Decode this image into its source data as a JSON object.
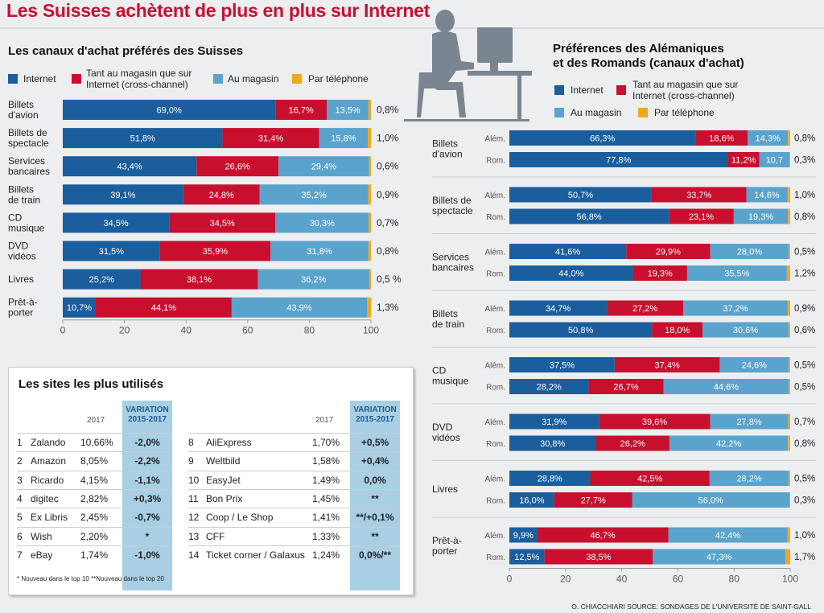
{
  "title": "Les Suisses achètent de plus en plus sur Internet",
  "colors": {
    "internet": "#1b5e9e",
    "cross": "#c8102e",
    "magasin": "#5aa3cc",
    "telephone": "#f2a81d",
    "title": "#c8102e"
  },
  "legend": {
    "internet": "Internet",
    "cross_line1": "Tant au magasin que sur",
    "cross_line2": "Internet (cross-channel)",
    "magasin": "Au magasin",
    "telephone": "Par téléphone"
  },
  "chart_data": [
    {
      "type": "bar",
      "orientation": "horizontal",
      "stacked": true,
      "title": "Les canaux d'achat préférés des Suisses",
      "series_names": [
        "Internet",
        "Tant au magasin que sur Internet (cross-channel)",
        "Au magasin",
        "Par téléphone"
      ],
      "xlim": [
        0,
        100
      ],
      "xticks": [
        "0",
        "20",
        "40",
        "60",
        "80",
        "100"
      ],
      "categories": [
        {
          "label": [
            "Billets",
            "d'avion"
          ],
          "values": [
            69.0,
            16.7,
            13.5,
            0.8
          ],
          "labels": [
            "69,0%",
            "16,7%",
            "13,5%",
            "0,8%"
          ]
        },
        {
          "label": [
            "Billets de",
            "spectacle"
          ],
          "values": [
            51.8,
            31.4,
            15.8,
            1.0
          ],
          "labels": [
            "51,8%",
            "31,4%",
            "15,8%",
            "1,0%"
          ]
        },
        {
          "label": [
            "Services",
            "bancaires"
          ],
          "values": [
            43.4,
            26.6,
            29.4,
            0.6
          ],
          "labels": [
            "43,4%",
            "26,6%",
            "29,4%",
            "0,6%"
          ]
        },
        {
          "label": [
            "Billets",
            "de train"
          ],
          "values": [
            39.1,
            24.8,
            35.2,
            0.9
          ],
          "labels": [
            "39,1%",
            "24,8%",
            "35,2%",
            "0,9%"
          ]
        },
        {
          "label": [
            "CD",
            "musique"
          ],
          "values": [
            34.5,
            34.5,
            30.3,
            0.7
          ],
          "labels": [
            "34,5%",
            "34,5%",
            "30,3%",
            "0,7%"
          ]
        },
        {
          "label": [
            "DVD",
            "vidéos"
          ],
          "values": [
            31.5,
            35.9,
            31.8,
            0.8
          ],
          "labels": [
            "31,5%",
            "35,9%",
            "31,8%",
            "0,8%"
          ]
        },
        {
          "label": [
            "Livres"
          ],
          "values": [
            25.2,
            38.1,
            36.2,
            0.5
          ],
          "labels": [
            "25,2%",
            "38,1%",
            "36,2%",
            "0,5 %"
          ]
        },
        {
          "label": [
            "Prêt-à-",
            "porter"
          ],
          "values": [
            10.7,
            44.1,
            43.9,
            1.3
          ],
          "labels": [
            "10,7%",
            "44,1%",
            "43,9%",
            "1,3%"
          ]
        }
      ]
    },
    {
      "type": "bar",
      "orientation": "horizontal",
      "stacked": true,
      "title": "Préférences des Alémaniques et des Romands (canaux d'achat)",
      "title_lines": [
        "Préférences des Alémaniques",
        "et des Romands (canaux d'achat)"
      ],
      "series_names": [
        "Internet",
        "Tant au magasin que sur Internet (cross-channel)",
        "Au magasin",
        "Par téléphone"
      ],
      "group_labels": [
        "Além.",
        "Rom."
      ],
      "xlim": [
        0,
        100
      ],
      "xticks": [
        "0",
        "20",
        "40",
        "60",
        "80",
        "100"
      ],
      "categories": [
        {
          "label": [
            "Billets",
            "d'avion"
          ],
          "alem": {
            "values": [
              66.3,
              18.6,
              14.3,
              0.8
            ],
            "labels": [
              "66,3%",
              "18,6%",
              "14,3%",
              "0,8%"
            ]
          },
          "rom": {
            "values": [
              77.8,
              11.2,
              10.7,
              0.3
            ],
            "labels": [
              "77,8%",
              "11,2%",
              "10,7",
              "0,3%"
            ]
          }
        },
        {
          "label": [
            "Billets de",
            "spectacle"
          ],
          "alem": {
            "values": [
              50.7,
              33.7,
              14.6,
              1.0
            ],
            "labels": [
              "50,7%",
              "33,7%",
              "14,6%",
              "1,0%"
            ]
          },
          "rom": {
            "values": [
              56.8,
              23.1,
              19.3,
              0.8
            ],
            "labels": [
              "56,8%",
              "23,1%",
              "19,3%",
              "0,8%"
            ]
          }
        },
        {
          "label": [
            "Services",
            "bancaires"
          ],
          "alem": {
            "values": [
              41.6,
              29.9,
              28.0,
              0.5
            ],
            "labels": [
              "41,6%",
              "29,9%",
              "28,0%",
              "0,5%"
            ]
          },
          "rom": {
            "values": [
              44.0,
              19.3,
              35.5,
              1.2
            ],
            "labels": [
              "44,0%",
              "19,3%",
              "35,5%",
              "1,2%"
            ]
          }
        },
        {
          "label": [
            "Billets",
            "de train"
          ],
          "alem": {
            "values": [
              34.7,
              27.2,
              37.2,
              0.9
            ],
            "labels": [
              "34,7%",
              "27,2%",
              "37,2%",
              "0,9%"
            ]
          },
          "rom": {
            "values": [
              50.8,
              18.0,
              30.6,
              0.6
            ],
            "labels": [
              "50,8%",
              "18,0%",
              "30,6%",
              "0,6%"
            ]
          }
        },
        {
          "label": [
            "CD",
            "musique"
          ],
          "alem": {
            "values": [
              37.5,
              37.4,
              24.6,
              0.5
            ],
            "labels": [
              "37,5%",
              "37,4%",
              "24,6%",
              "0,5%"
            ]
          },
          "rom": {
            "values": [
              28.2,
              26.7,
              44.6,
              0.5
            ],
            "labels": [
              "28,2%",
              "26,7%",
              "44,6%",
              "0,5%"
            ]
          }
        },
        {
          "label": [
            "DVD",
            "vidéos"
          ],
          "alem": {
            "values": [
              31.9,
              39.6,
              27.8,
              0.7
            ],
            "labels": [
              "31,9%",
              "39,6%",
              "27,8%",
              "0,7%"
            ]
          },
          "rom": {
            "values": [
              30.8,
              26.2,
              42.2,
              0.8
            ],
            "labels": [
              "30,8%",
              "26,2%",
              "42,2%",
              "0,8%"
            ]
          }
        },
        {
          "label": [
            "Livres"
          ],
          "alem": {
            "values": [
              28.8,
              42.5,
              28.2,
              0.5
            ],
            "labels": [
              "28,8%",
              "42,5%",
              "28,2%",
              "0,5%"
            ]
          },
          "rom": {
            "values": [
              16.0,
              27.7,
              56.0,
              0.3
            ],
            "labels": [
              "16,0%",
              "27,7%",
              "56,0%",
              "0,3%"
            ]
          }
        },
        {
          "label": [
            "Prêt-à-",
            "porter"
          ],
          "alem": {
            "values": [
              9.9,
              46.7,
              42.4,
              1.0
            ],
            "labels": [
              "9,9%",
              "46,7%",
              "42,4%",
              "1,0%"
            ]
          },
          "rom": {
            "values": [
              12.5,
              38.5,
              47.3,
              1.7
            ],
            "labels": [
              "12,5%",
              "38,5%",
              "47,3%",
              "1,7%"
            ]
          }
        }
      ]
    },
    {
      "type": "table",
      "title": "Les sites les plus utilisés",
      "col_year": "2017",
      "col_var": [
        "VARIATION",
        "2015-2017"
      ],
      "left": [
        {
          "rank": "1",
          "name": "Zalando",
          "share": "10,66%",
          "var": "-2,0%"
        },
        {
          "rank": "2",
          "name": "Amazon",
          "share": "8,05%",
          "var": "-2,2%"
        },
        {
          "rank": "3",
          "name": "Ricardo",
          "share": "4,15%",
          "var": "-1,1%"
        },
        {
          "rank": "4",
          "name": "digitec",
          "share": "2,82%",
          "var": "+0,3%"
        },
        {
          "rank": "5",
          "name": "Ex Libris",
          "share": "2,45%",
          "var": "-0,7%"
        },
        {
          "rank": "6",
          "name": "Wish",
          "share": "2,20%",
          "var": "*"
        },
        {
          "rank": "7",
          "name": "eBay",
          "share": "1,74%",
          "var": "-1,0%"
        }
      ],
      "right": [
        {
          "rank": "8",
          "name": "AliExpress",
          "share": "1,70%",
          "var": "+0,5%"
        },
        {
          "rank": "9",
          "name": "Weltbild",
          "share": "1,58%",
          "var": "+0,4%"
        },
        {
          "rank": "10",
          "name": "EasyJet",
          "share": "1,49%",
          "var": "0,0%"
        },
        {
          "rank": "11",
          "name": "Bon Prix",
          "share": "1,45%",
          "var": "**"
        },
        {
          "rank": "12",
          "name": "Coop / Le Shop",
          "share": "1,41%",
          "var": "**/+0,1%"
        },
        {
          "rank": "13",
          "name": "CFF",
          "share": "1,33%",
          "var": "**"
        },
        {
          "rank": "14",
          "name": "Ticket corner / Galaxus",
          "share": "1,24%",
          "var": "0,0%/**"
        }
      ],
      "footnote": "* Nouveau dans le top 10  **Nouveau dans le top 20"
    }
  ],
  "credit": "O. CHIACCHIARI  SOURCE: SONDAGES DE L'UNIVERSITÉ DE SAINT-GALL"
}
